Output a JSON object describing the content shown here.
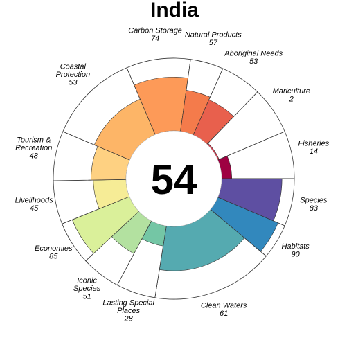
{
  "chart_data": {
    "type": "flower",
    "title": "India",
    "score": 54,
    "ylim": [
      0,
      100
    ],
    "series": [
      {
        "name": "Carbon Storage",
        "value": 74,
        "weight": 31,
        "color": "#fd9a58"
      },
      {
        "name": "Natural Products",
        "value": 57,
        "weight": 16,
        "color": "#f47b4b"
      },
      {
        "name": "Aboriginal Needs",
        "value": 53,
        "weight": 20,
        "color": "#e8604d"
      },
      {
        "name": "Mariculture",
        "value": 2,
        "weight": 23,
        "color": "#d53e4f"
      },
      {
        "name": "Fisheries",
        "value": 14,
        "weight": 23,
        "color": "#9e0142"
      },
      {
        "name": "Species",
        "value": 83,
        "weight": 23,
        "color": "#5e4fa2"
      },
      {
        "name": "Habitats",
        "value": 90,
        "weight": 17,
        "color": "#3288bd"
      },
      {
        "name": "Clean Waters",
        "value": 61,
        "weight": 59,
        "color": "#55aab0"
      },
      {
        "name": "Lasting Special\nPlaces",
        "value": 28,
        "weight": 19,
        "color": "#74c6a5"
      },
      {
        "name": "Iconic\nSpecies",
        "value": 51,
        "weight": 19,
        "color": "#b3e1a0"
      },
      {
        "name": "Economies",
        "value": 85,
        "weight": 21,
        "color": "#daf09a"
      },
      {
        "name": "Livelihoods",
        "value": 45,
        "weight": 21,
        "color": "#f6ec96"
      },
      {
        "name": "Tourism &\nRecreation",
        "value": 48,
        "weight": 24,
        "color": "#fed182"
      },
      {
        "name": "Coastal\nProtection",
        "value": 53,
        "weight": 44,
        "color": "#fdb567"
      }
    ]
  }
}
